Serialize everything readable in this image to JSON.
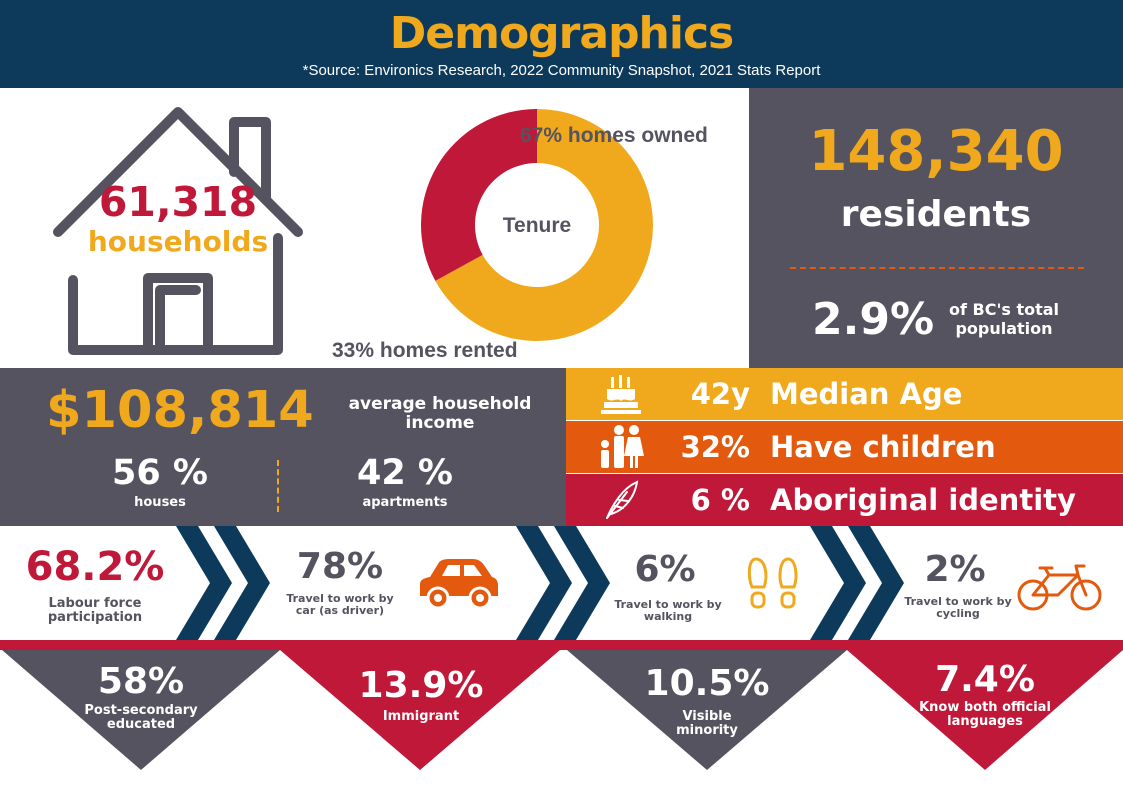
{
  "header": {
    "title": "Demographics",
    "source": "*Source: Environics Research, 2022 Community Snapshot, 2021 Stats Report"
  },
  "households": {
    "value": "61,318",
    "label": "households"
  },
  "tenure": {
    "center_label": "Tenure",
    "owned_label": "67% homes owned",
    "rented_label": "33% homes rented"
  },
  "residents": {
    "value": "148,340",
    "label": "residents",
    "share_value": "2.9%",
    "share_label_1": "of BC's total",
    "share_label_2": "population"
  },
  "income": {
    "value": "$108,814",
    "label_1": "average household",
    "label_2": "income",
    "houses_value": "56 %",
    "houses_label": "houses",
    "apartments_value": "42 %",
    "apartments_label": "apartments"
  },
  "bands": [
    {
      "value": "42y",
      "label": "Median Age",
      "icon": "cake-icon",
      "color": "#f0a91c"
    },
    {
      "value": "32%",
      "label": "Have children",
      "icon": "family-icon",
      "color": "#e35a0e"
    },
    {
      "value": "6 %",
      "label": "Aboriginal identity",
      "icon": "feather-icon",
      "color": "#c01838"
    }
  ],
  "work": {
    "labour": {
      "value": "68.2%",
      "label_1": "Labour force",
      "label_2": "participation"
    },
    "car": {
      "value": "78%",
      "label_1": "Travel to work by",
      "label_2": "car (as driver)",
      "icon": "car-icon"
    },
    "walking": {
      "value": "6%",
      "label_1": "Travel to work by",
      "label_2": "walking",
      "icon": "footprints-icon"
    },
    "cycling": {
      "value": "2%",
      "label_1": "Travel to work by",
      "label_2": "cycling",
      "icon": "bicycle-icon"
    }
  },
  "triangles": [
    {
      "value": "58%",
      "label_1": "Post-secondary",
      "label_2": "educated",
      "color": "#55535f"
    },
    {
      "value": "13.9%",
      "label_1": "Immigrant",
      "label_2": "",
      "color": "#c01838"
    },
    {
      "value": "10.5%",
      "label_1": "Visible",
      "label_2": "minority",
      "color": "#55535f"
    },
    {
      "value": "7.4%",
      "label_1": "Know both official",
      "label_2": "languages",
      "color": "#c01838"
    }
  ],
  "chart_data": {
    "type": "pie",
    "title": "Tenure",
    "categories": [
      "homes owned",
      "homes rented"
    ],
    "values": [
      67,
      33
    ],
    "colors": [
      "#f0a91c",
      "#c01838"
    ]
  }
}
